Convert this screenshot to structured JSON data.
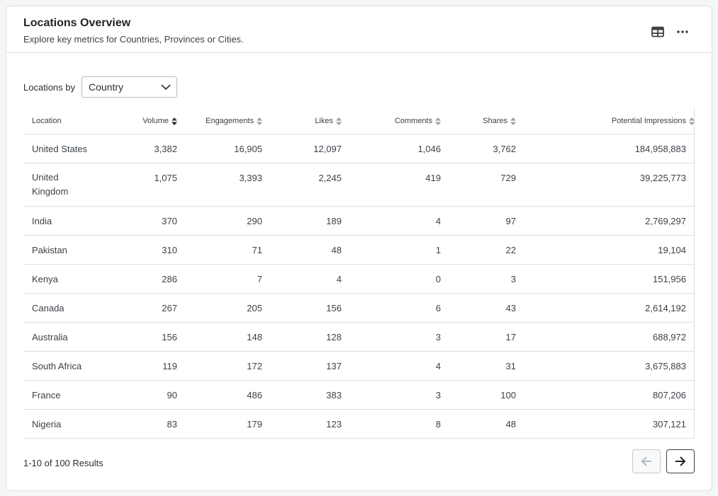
{
  "header": {
    "title": "Locations Overview",
    "subtitle": "Explore key metrics for Countries, Provinces or Cities."
  },
  "filter": {
    "label": "Locations by",
    "selected": "Country"
  },
  "table": {
    "columns": [
      "Location",
      "Volume",
      "Engagements",
      "Likes",
      "Comments",
      "Shares",
      "Potential Impressions"
    ],
    "sorted_column": "Volume",
    "sort_direction": "desc",
    "rows": [
      [
        "United States",
        "3,382",
        "16,905",
        "12,097",
        "1,046",
        "3,762",
        "184,958,883"
      ],
      [
        "United Kingdom",
        "1,075",
        "3,393",
        "2,245",
        "419",
        "729",
        "39,225,773"
      ],
      [
        "India",
        "370",
        "290",
        "189",
        "4",
        "97",
        "2,769,297"
      ],
      [
        "Pakistan",
        "310",
        "71",
        "48",
        "1",
        "22",
        "19,104"
      ],
      [
        "Kenya",
        "286",
        "7",
        "4",
        "0",
        "3",
        "151,956"
      ],
      [
        "Canada",
        "267",
        "205",
        "156",
        "6",
        "43",
        "2,614,192"
      ],
      [
        "Australia",
        "156",
        "148",
        "128",
        "3",
        "17",
        "688,972"
      ],
      [
        "South Africa",
        "119",
        "172",
        "137",
        "4",
        "31",
        "3,675,883"
      ],
      [
        "France",
        "90",
        "486",
        "383",
        "3",
        "100",
        "807,206"
      ],
      [
        "Nigeria",
        "83",
        "179",
        "123",
        "8",
        "48",
        "307,121"
      ]
    ]
  },
  "footer": {
    "results_text": "1-10 of 100 Results"
  },
  "icons": {
    "table_view": "table-icon",
    "more": "more-horizontal-icon",
    "dropdown": "chevron-down-icon",
    "prev": "arrow-left-icon",
    "next": "arrow-right-icon"
  },
  "colors": {
    "border": "#dcdfe3",
    "text": "#2b2f33",
    "disabled": "#b4b9bf"
  }
}
